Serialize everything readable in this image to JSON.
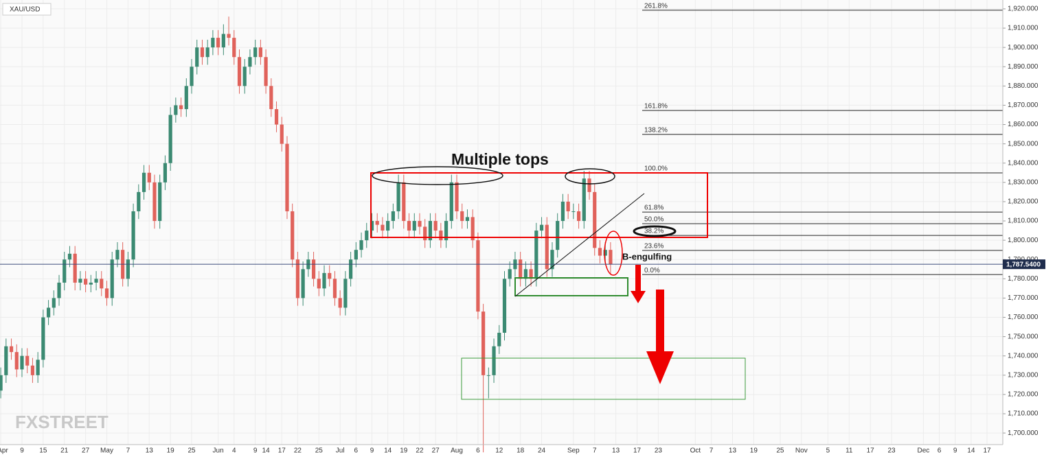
{
  "chart_data": {
    "type": "candlestick",
    "symbol": "XAU/USD",
    "logo": "FXSTREET",
    "categories": [
      "Apr",
      null,
      null,
      null,
      "9",
      null,
      null,
      null,
      "15",
      null,
      null,
      null,
      "21",
      null,
      null,
      null,
      "27",
      null,
      null,
      null,
      "May",
      null,
      null,
      null,
      "7",
      null,
      null,
      null,
      "13",
      null,
      null,
      null,
      "19",
      null,
      null,
      null,
      "25",
      null,
      null,
      null,
      null,
      "Jun",
      null,
      null,
      "4",
      null,
      null,
      null,
      "9",
      null,
      "14",
      null,
      null,
      "17",
      null,
      null,
      "22",
      null,
      null,
      null,
      "25",
      null,
      null,
      null,
      "Jul",
      null,
      null,
      "6",
      null,
      null,
      "9",
      null,
      null,
      "14",
      null,
      null,
      "19",
      null,
      null,
      "22",
      null,
      null,
      "27",
      null,
      null,
      null,
      "Aug",
      null,
      null,
      null,
      "6",
      null,
      null,
      null,
      "12",
      null,
      null,
      null,
      "18",
      null,
      null,
      null,
      "24",
      null,
      null,
      null,
      null,
      null,
      "Sep",
      null,
      null,
      null,
      "7",
      null,
      null,
      null,
      "13",
      null,
      null,
      null,
      "17",
      null,
      null,
      null,
      "23",
      null,
      null,
      null,
      null,
      null,
      null,
      "Oct",
      null,
      null,
      "7",
      null,
      null,
      null,
      "13",
      null,
      null,
      null,
      "19",
      null,
      null,
      null,
      null,
      "25",
      null,
      null,
      null,
      "Nov",
      null,
      null,
      null,
      null,
      "5",
      null,
      null,
      null,
      "11",
      null,
      null,
      null,
      "17",
      null,
      null,
      null,
      "23",
      null,
      null,
      null,
      null,
      null,
      "Dec",
      null,
      null,
      "6",
      null,
      null,
      "9",
      null,
      null,
      "14",
      null,
      null,
      "17",
      null,
      null,
      null
    ],
    "open": [
      1722,
      1730,
      1745,
      1742,
      1733,
      1740,
      1735,
      1730,
      1738,
      1760,
      1765,
      1770,
      1778,
      1790,
      1793,
      1778,
      1780,
      1777,
      1778,
      1780,
      1775,
      1770,
      1790,
      1795,
      1780,
      1790,
      1815,
      1825,
      1835,
      1830,
      1810,
      1830,
      1840,
      1865,
      1870,
      1868,
      1880,
      1890,
      1900,
      1895,
      1900,
      1905,
      1900,
      1907,
      1905,
      1895,
      1880,
      1890,
      1895,
      1900,
      1895,
      1880,
      1868,
      1860,
      1850,
      1815,
      1790,
      1770,
      1785,
      1790,
      1780,
      1775,
      1783,
      1780,
      1770,
      1765,
      1780,
      1790,
      1795,
      1800,
      1805,
      1810,
      1808,
      1805,
      1810,
      1815,
      1830,
      1810,
      1805,
      1810,
      1807,
      1800,
      1810,
      1805,
      1800,
      1810,
      1830,
      1815,
      1810,
      1812,
      1800,
      1763,
      1730,
      1730,
      1745,
      1752,
      1780,
      1785,
      1790,
      1780,
      1785,
      1780,
      1805,
      1808,
      1785,
      1795,
      1810,
      1820,
      1815,
      1815,
      1810,
      1832,
      1825,
      1796,
      1792,
      1795,
      null,
      null,
      null,
      null,
      null,
      null,
      null,
      null,
      null,
      null,
      null,
      null,
      null,
      null,
      null,
      null,
      null,
      null,
      null,
      null,
      null,
      null,
      null,
      null,
      null,
      null,
      null,
      null,
      null,
      null,
      null,
      null,
      null,
      null,
      null,
      null,
      null,
      null,
      null,
      null,
      null,
      null,
      null,
      null,
      null,
      null,
      null,
      null,
      null,
      null,
      null,
      null,
      null,
      null,
      null,
      null,
      null,
      null,
      null,
      null,
      null,
      null,
      null,
      null,
      null,
      null,
      null,
      null,
      null,
      null,
      null,
      null,
      null,
      null
    ],
    "high": [
      1734,
      1749,
      1749,
      1746,
      1744,
      1744,
      1739,
      1742,
      1764,
      1769,
      1774,
      1782,
      1794,
      1797,
      1797,
      1784,
      1784,
      1782,
      1784,
      1784,
      1779,
      1794,
      1799,
      1799,
      1794,
      1819,
      1829,
      1839,
      1839,
      1834,
      1834,
      1844,
      1869,
      1874,
      1874,
      1884,
      1894,
      1904,
      1904,
      1904,
      1909,
      1909,
      1912,
      1916,
      1909,
      1899,
      1894,
      1899,
      1904,
      1904,
      1899,
      1884,
      1872,
      1864,
      1854,
      1819,
      1794,
      1789,
      1794,
      1794,
      1784,
      1787,
      1787,
      1784,
      1774,
      1784,
      1794,
      1799,
      1804,
      1809,
      1814,
      1814,
      1812,
      1814,
      1819,
      1834,
      1834,
      1814,
      1814,
      1814,
      1811,
      1814,
      1814,
      1809,
      1814,
      1834,
      1834,
      1819,
      1816,
      1816,
      1804,
      1767,
      1734,
      1749,
      1756,
      1784,
      1789,
      1794,
      1794,
      1789,
      1789,
      1809,
      1812,
      1812,
      1799,
      1814,
      1824,
      1824,
      1819,
      1819,
      1836,
      1836,
      1829,
      1800,
      1799,
      1799,
      null,
      null,
      null,
      null,
      null,
      null,
      null,
      null,
      null,
      null,
      null,
      null,
      null,
      null,
      null,
      null,
      null,
      null,
      null,
      null,
      null,
      null,
      null,
      null,
      null,
      null,
      null,
      null,
      null,
      null,
      null,
      null,
      null,
      null,
      null,
      null,
      null,
      null,
      null,
      null,
      null,
      null,
      null,
      null,
      null,
      null,
      null,
      null,
      null,
      null,
      null,
      null,
      null,
      null,
      null,
      null,
      null,
      null,
      null,
      null,
      null,
      null,
      null,
      null,
      null,
      null,
      null,
      null,
      null,
      null,
      null,
      null,
      null,
      null
    ],
    "low": [
      1718,
      1726,
      1738,
      1729,
      1729,
      1731,
      1726,
      1726,
      1734,
      1756,
      1761,
      1766,
      1774,
      1786,
      1774,
      1774,
      1773,
      1773,
      1774,
      1771,
      1766,
      1766,
      1786,
      1776,
      1776,
      1786,
      1811,
      1821,
      1826,
      1806,
      1806,
      1826,
      1836,
      1861,
      1864,
      1864,
      1876,
      1886,
      1891,
      1891,
      1896,
      1896,
      1896,
      1901,
      1891,
      1876,
      1876,
      1886,
      1891,
      1891,
      1876,
      1864,
      1856,
      1846,
      1811,
      1786,
      1766,
      1766,
      1781,
      1776,
      1771,
      1771,
      1776,
      1766,
      1761,
      1761,
      1776,
      1786,
      1791,
      1796,
      1801,
      1804,
      1801,
      1801,
      1806,
      1811,
      1806,
      1801,
      1801,
      1803,
      1796,
      1796,
      1801,
      1796,
      1796,
      1806,
      1811,
      1806,
      1806,
      1796,
      1759,
      1690,
      1718,
      1726,
      1741,
      1748,
      1776,
      1781,
      1776,
      1776,
      1776,
      1776,
      1801,
      1781,
      1781,
      1791,
      1806,
      1811,
      1811,
      1806,
      1806,
      1821,
      1792,
      1788,
      1788,
      1782,
      null,
      null,
      null,
      null,
      null,
      null,
      null,
      null,
      null,
      null,
      null,
      null,
      null,
      null,
      null,
      null,
      null,
      null,
      null,
      null,
      null,
      null,
      null,
      null,
      null,
      null,
      null,
      null,
      null,
      null,
      null,
      null,
      null,
      null,
      null,
      null,
      null,
      null,
      null,
      null,
      null,
      null,
      null,
      null,
      null,
      null,
      null,
      null,
      null,
      null,
      null,
      null,
      null,
      null,
      null,
      null,
      null,
      null,
      null,
      null,
      null,
      null,
      null,
      null,
      null,
      null,
      null,
      null,
      null,
      null,
      null,
      null,
      null,
      null
    ],
    "close": [
      1730,
      1745,
      1742,
      1733,
      1740,
      1735,
      1730,
      1738,
      1760,
      1765,
      1770,
      1778,
      1790,
      1793,
      1778,
      1780,
      1777,
      1778,
      1780,
      1775,
      1770,
      1790,
      1795,
      1780,
      1790,
      1815,
      1825,
      1835,
      1830,
      1810,
      1830,
      1840,
      1865,
      1870,
      1868,
      1880,
      1890,
      1900,
      1895,
      1900,
      1905,
      1900,
      1907,
      1905,
      1895,
      1880,
      1890,
      1895,
      1900,
      1895,
      1880,
      1868,
      1860,
      1850,
      1815,
      1790,
      1770,
      1785,
      1790,
      1780,
      1775,
      1783,
      1780,
      1770,
      1765,
      1780,
      1790,
      1795,
      1800,
      1805,
      1810,
      1808,
      1805,
      1810,
      1815,
      1830,
      1810,
      1805,
      1810,
      1807,
      1800,
      1810,
      1805,
      1800,
      1810,
      1830,
      1815,
      1810,
      1812,
      1800,
      1763,
      1730,
      1730,
      1745,
      1752,
      1780,
      1785,
      1790,
      1780,
      1785,
      1780,
      1805,
      1808,
      1785,
      1795,
      1810,
      1820,
      1815,
      1815,
      1810,
      1832,
      1825,
      1796,
      1792,
      1795,
      1787.54,
      null,
      null,
      null,
      null,
      null,
      null,
      null,
      null,
      null,
      null,
      null,
      null,
      null,
      null,
      null,
      null,
      null,
      null,
      null,
      null,
      null,
      null,
      null,
      null,
      null,
      null,
      null,
      null,
      null,
      null,
      null,
      null,
      null,
      null,
      null,
      null,
      null,
      null,
      null,
      null,
      null,
      null,
      null,
      null,
      null,
      null,
      null,
      null,
      null,
      null,
      null,
      null,
      null,
      null,
      null,
      null,
      null,
      null,
      null,
      null,
      null,
      null,
      null,
      null,
      null,
      null,
      null,
      null,
      null,
      null,
      null,
      null,
      null,
      null
    ],
    "up_color": "#3b8a72",
    "down_color": "#e0625b",
    "ylim": [
      1694,
      1924.6
    ],
    "yticks": [
      {
        "value": 1700,
        "label": "1,700.000"
      },
      {
        "value": 1710,
        "label": "1,710.000"
      },
      {
        "value": 1720,
        "label": "1,720.000"
      },
      {
        "value": 1730,
        "label": "1,730.000"
      },
      {
        "value": 1740,
        "label": "1,740.000"
      },
      {
        "value": 1750,
        "label": "1,750.000"
      },
      {
        "value": 1760,
        "label": "1,760.000"
      },
      {
        "value": 1770,
        "label": "1,770.000"
      },
      {
        "value": 1780,
        "label": "1,780.000"
      },
      {
        "value": 1790,
        "label": "1,790.000"
      },
      {
        "value": 1800,
        "label": "1,800.000"
      },
      {
        "value": 1810,
        "label": "1,810.000"
      },
      {
        "value": 1820,
        "label": "1,820.000"
      },
      {
        "value": 1830,
        "label": "1,830.000"
      },
      {
        "value": 1840,
        "label": "1,840.000"
      },
      {
        "value": 1850,
        "label": "1,850.000"
      },
      {
        "value": 1860,
        "label": "1,860.000"
      },
      {
        "value": 1870,
        "label": "1,870.000"
      },
      {
        "value": 1880,
        "label": "1,880.000"
      },
      {
        "value": 1890,
        "label": "1,890.000"
      },
      {
        "value": 1900,
        "label": "1,900.000"
      },
      {
        "value": 1910,
        "label": "1,910.000"
      },
      {
        "value": 1920,
        "label": "1,920.000"
      }
    ],
    "grid": true,
    "last_price": {
      "value": 1787.54,
      "label": "1,787.5400"
    },
    "fib_levels": [
      {
        "label": "261.8%",
        "value": 1919.3
      },
      {
        "label": "161.8%",
        "value": 1867.3
      },
      {
        "label": "138.2%",
        "value": 1854.9
      },
      {
        "label": "100.0%",
        "value": 1834.9
      },
      {
        "label": "61.8%",
        "value": 1814.6
      },
      {
        "label": "50.0%",
        "value": 1808.6
      },
      {
        "label": "38.2%",
        "value": 1802.5
      },
      {
        "label": "23.6%",
        "value": 1794.7
      },
      {
        "label": "0.0%",
        "value": 1782.2
      }
    ],
    "annotations": [
      "Multiple tops",
      "B-engulfing"
    ]
  }
}
